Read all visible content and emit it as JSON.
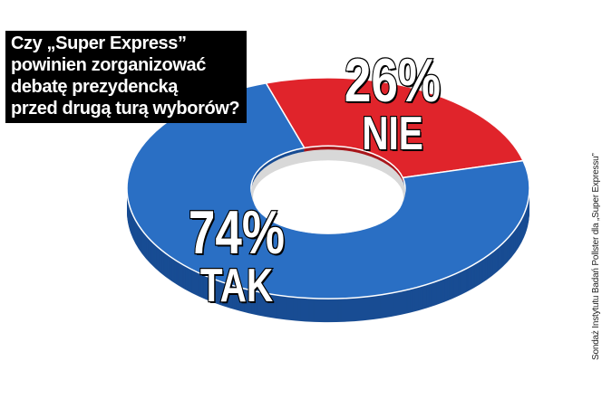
{
  "question": {
    "lines": [
      "Czy „Super Express”",
      "powinien zorganizować",
      "debatę prezydencką",
      "przed drugą turą wyborów?"
    ]
  },
  "source": "Sondaż Instytutu Badań Pollster dla „Super Expressu”",
  "chart_data": {
    "type": "pie",
    "variant": "donut-3d",
    "title": "Czy „Super Express” powinien zorganizować debatę prezydencką przed drugą turą wyborów?",
    "slices": [
      {
        "label": "NIE",
        "value": 26,
        "display": "26%",
        "color": "#e0242b",
        "side_color": "#a8161b"
      },
      {
        "label": "TAK",
        "value": 74,
        "display": "74%",
        "color": "#2a6fc4",
        "side_color": "#184c93"
      }
    ]
  }
}
